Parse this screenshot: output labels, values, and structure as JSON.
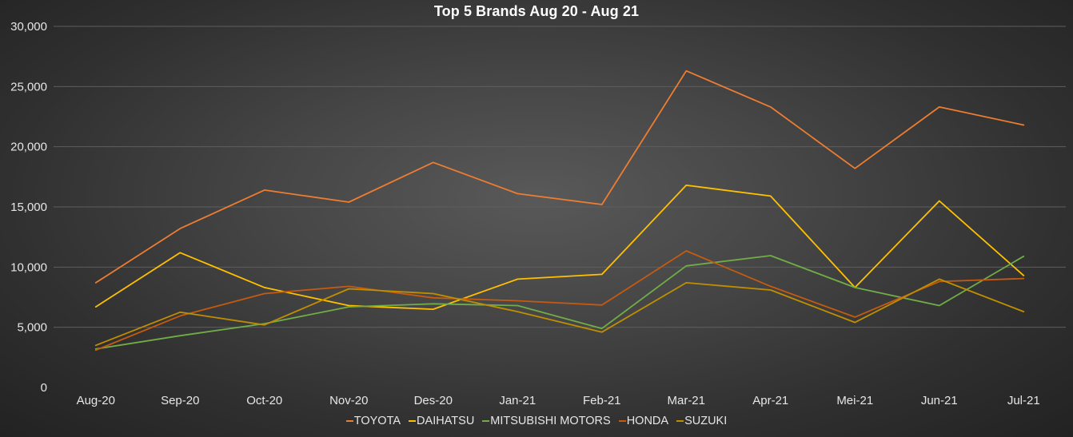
{
  "chart_data": {
    "type": "line",
    "title": "Top 5 Brands Aug 20 - Aug 21",
    "xlabel": "",
    "ylabel": "",
    "categories": [
      "Aug-20",
      "Sep-20",
      "Oct-20",
      "Nov-20",
      "Des-20",
      "Jan-21",
      "Feb-21",
      "Mar-21",
      "Apr-21",
      "Mei-21",
      "Jun-21",
      "Jul-21"
    ],
    "ylim": [
      0,
      30000
    ],
    "yticks": [
      0,
      5000,
      10000,
      15000,
      20000,
      25000,
      30000
    ],
    "ytick_labels": [
      "0",
      "5,000",
      "10,000",
      "15,000",
      "20,000",
      "25,000",
      "30,000"
    ],
    "grid": true,
    "legend_position": "bottom",
    "series": [
      {
        "name": "TOYOTA",
        "color": "#ed7d31",
        "values": [
          8700,
          13200,
          16400,
          15400,
          18700,
          16100,
          15200,
          26300,
          23300,
          18200,
          23300,
          21800
        ]
      },
      {
        "name": "DAIHATSU",
        "color": "#ffc000",
        "values": [
          6700,
          11200,
          8300,
          6800,
          6500,
          9000,
          9400,
          16800,
          15900,
          8300,
          15500,
          9300
        ]
      },
      {
        "name": "MITSUBISHI MOTORS",
        "color": "#70ad47",
        "values": [
          3200,
          4300,
          5300,
          6700,
          6950,
          6800,
          4900,
          10100,
          10950,
          8300,
          6800,
          10900
        ]
      },
      {
        "name": "HONDA",
        "color": "#c55a11",
        "values": [
          3100,
          5950,
          7800,
          8400,
          7450,
          7200,
          6850,
          11350,
          8400,
          5850,
          8800,
          9050
        ]
      },
      {
        "name": "SUZUKI",
        "color": "#bf8f00",
        "values": [
          3500,
          6250,
          5200,
          8200,
          7800,
          6300,
          4600,
          8700,
          8100,
          5400,
          9000,
          6300
        ]
      }
    ]
  }
}
